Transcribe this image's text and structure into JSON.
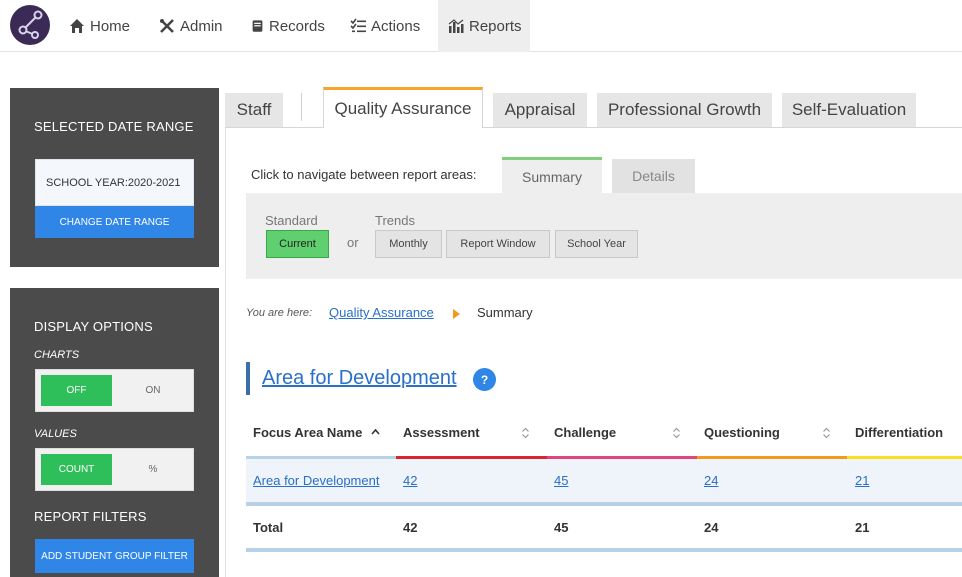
{
  "nav": {
    "items": [
      {
        "label": "Home",
        "icon": "home-icon"
      },
      {
        "label": "Admin",
        "icon": "tools-icon"
      },
      {
        "label": "Records",
        "icon": "book-icon"
      },
      {
        "label": "Actions",
        "icon": "checklist-icon"
      },
      {
        "label": "Reports",
        "icon": "chart-icon"
      }
    ],
    "active": "Reports"
  },
  "sidebar": {
    "date_panel": {
      "title": "SELECTED DATE RANGE",
      "value": "SCHOOL YEAR:2020-2021",
      "change_button": "CHANGE DATE RANGE"
    },
    "display_panel": {
      "title": "DISPLAY OPTIONS",
      "charts_label": "CHARTS",
      "charts_options": [
        "OFF",
        "ON"
      ],
      "charts_selected": "OFF",
      "values_label": "VALUES",
      "values_options": [
        "COUNT",
        "%"
      ],
      "values_selected": "COUNT",
      "filters_title": "REPORT FILTERS",
      "add_filter_button": "ADD STUDENT GROUP FILTER"
    }
  },
  "tabs": [
    "Staff",
    "Quality Assurance",
    "Appraisal",
    "Professional Growth",
    "Self-Evaluation"
  ],
  "active_tab": "Quality Assurance",
  "report_nav": {
    "prompt": "Click to navigate between report areas:",
    "subtabs": [
      "Summary",
      "Details"
    ],
    "active_subtab": "Summary",
    "standard_label": "Standard",
    "standard_button": "Current",
    "or_text": "or",
    "trends_label": "Trends",
    "trend_buttons": [
      "Monthly",
      "Report Window",
      "School Year"
    ]
  },
  "breadcrumb": {
    "prefix": "You are here:",
    "link": "Quality Assurance",
    "current": "Summary"
  },
  "section": {
    "title": "Area for Development",
    "help": "?"
  },
  "table": {
    "columns": [
      "Focus Area Name",
      "Assessment",
      "Challenge",
      "Questioning",
      "Differentiation"
    ],
    "column_colors": [
      "#d9262c",
      "#e0457b",
      "#f39a1e",
      "#f6e21d"
    ],
    "rows": [
      {
        "name": "Area for Development",
        "values": [
          "42",
          "45",
          "24",
          "21"
        ]
      }
    ],
    "total": {
      "name": "Total",
      "values": [
        "42",
        "45",
        "24",
        "21"
      ]
    }
  },
  "colors": {
    "accent_blue": "#2f86e6",
    "active_green": "#2fbf5a",
    "sidebar_bg": "#4b4b4b",
    "tab_accent": "#f4a52a"
  }
}
